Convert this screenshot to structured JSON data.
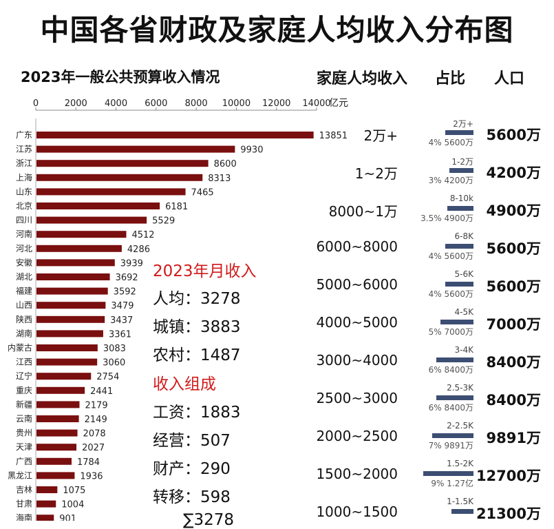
{
  "title": "中国各省财政及家庭人均收入分布图",
  "chart_data": {
    "type": "bar",
    "orientation": "horizontal",
    "title": "2023年一般公共预算收入情况",
    "unit": "亿元",
    "xlim": [
      0,
      14000
    ],
    "xticks": [
      0,
      2000,
      4000,
      6000,
      8000,
      10000,
      12000,
      14000
    ],
    "categories": [
      "广东",
      "江苏",
      "浙江",
      "上海",
      "山东",
      "北京",
      "四川",
      "河南",
      "河北",
      "安徽",
      "湖北",
      "福建",
      "山西",
      "陕西",
      "湖南",
      "内蒙古",
      "江西",
      "辽宁",
      "重庆",
      "新疆",
      "云南",
      "贵州",
      "天津",
      "广西",
      "黑龙江",
      "吉林",
      "甘肃",
      "海南"
    ],
    "values": [
      13851,
      9930,
      8600,
      8313,
      7465,
      6181,
      5529,
      4512,
      4286,
      3939,
      3692,
      3592,
      3479,
      3437,
      3361,
      3083,
      3060,
      2754,
      2441,
      2179,
      2149,
      2078,
      2027,
      1784,
      1936,
      1075,
      1004,
      901
    ],
    "value_labels": [
      "13851",
      "9930",
      "8600",
      "8313",
      "7465",
      "6181",
      "5529",
      "4512",
      "4286",
      "3939",
      "3692",
      "3592",
      "3479",
      "3437",
      "3361",
      "3083",
      "3060",
      "2754",
      "2441",
      "2179",
      "2149",
      "2078",
      "2027",
      "1784",
      "1936",
      "1075",
      "1004",
      "901"
    ],
    "bar_color": "#7a0f0f"
  },
  "income_headers": {
    "income": "家庭人均收入",
    "share": "占比",
    "population": "人口"
  },
  "income_bands": [
    {
      "band": "2万+",
      "bar_label": "2万+",
      "share_text": "4% 5600万",
      "share": 4,
      "population": "5600万"
    },
    {
      "band": "1~2万",
      "bar_label": "1-2万",
      "share_text": "3% 4200万",
      "share": 3,
      "population": "4200万"
    },
    {
      "band": "8000~1万",
      "bar_label": "8-10k",
      "share_text": "3.5% 4900万",
      "share": 3.5,
      "population": "4900万"
    },
    {
      "band": "6000~8000",
      "bar_label": "6-8K",
      "share_text": "4% 5600万",
      "share": 4,
      "population": "5600万"
    },
    {
      "band": "5000~6000",
      "bar_label": "5-6K",
      "share_text": "4% 5600万",
      "share": 4,
      "population": "5600万"
    },
    {
      "band": "4000~5000",
      "bar_label": "4-5K",
      "share_text": "5% 7000万",
      "share": 5,
      "population": "7000万"
    },
    {
      "band": "3000~4000",
      "bar_label": "3-4K",
      "share_text": "6% 8400万",
      "share": 6,
      "population": "8400万"
    },
    {
      "band": "2500~3000",
      "bar_label": "2.5-3K",
      "share_text": "6% 8400万",
      "share": 6,
      "population": "8400万"
    },
    {
      "band": "2000~2500",
      "bar_label": "2-2.5K",
      "share_text": "7% 9891万",
      "share": 7,
      "population": "9891万"
    },
    {
      "band": "1500~2000",
      "bar_label": "1.5-2K",
      "share_text": "9% 1.27亿",
      "share": 9,
      "population": "12700万"
    },
    {
      "band": "1000~1500",
      "bar_label": "1-1.5K",
      "share_text": "",
      "share": null,
      "population": "21300万"
    }
  ],
  "monthly": {
    "title": "2023年月收入",
    "rows": [
      {
        "label": "人均：",
        "value": "3278"
      },
      {
        "label": "城镇：",
        "value": "3883"
      },
      {
        "label": "农村：",
        "value": "1487"
      }
    ]
  },
  "composition": {
    "title": "收入组成",
    "rows": [
      {
        "label": "工资：",
        "value": "1883"
      },
      {
        "label": "经营：",
        "value": "507"
      },
      {
        "label": "财产：",
        "value": "290"
      },
      {
        "label": "转移：",
        "value": "598"
      }
    ],
    "total": "∑3278"
  }
}
